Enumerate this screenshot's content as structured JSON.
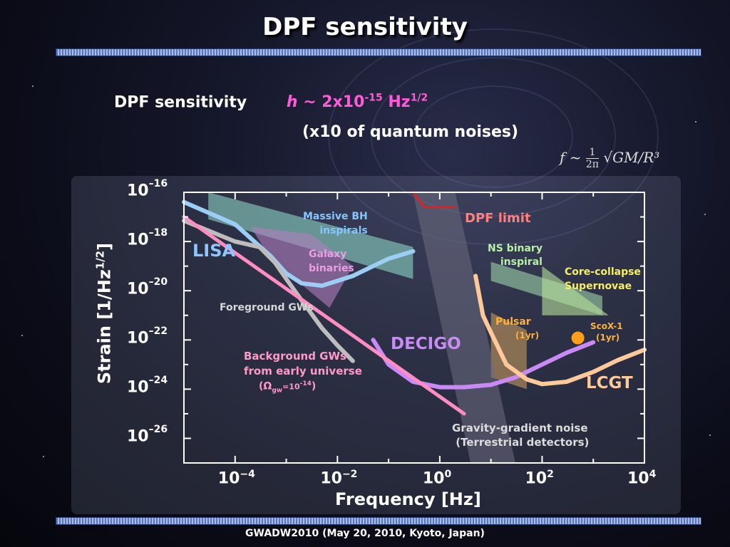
{
  "slide": {
    "title": "DPF sensitivity",
    "line1_label": "DPF sensitivity",
    "line1_h": "h",
    "line1_value": "~ 2x10",
    "line1_exp": "-15",
    "line1_unit": "Hz",
    "line1_unit_exp": "1/2",
    "line2": "(x10 of quantum noises)",
    "formula_lhs": "f ~",
    "formula_num": "1",
    "formula_den": "2π",
    "formula_rhs": "√GM/R³",
    "footer": "GWADW2010 (May 20, 2010, Kyoto, Japan)"
  },
  "chart_data": {
    "type": "line",
    "xlabel": "Frequency   [Hz]",
    "ylabel_main": "Strain   [1/Hz",
    "ylabel_exp": "1/2",
    "ylabel_close": "]",
    "xscale": "log",
    "yscale": "log",
    "xlim": [
      1e-05,
      10000
    ],
    "ylim": [
      1e-27,
      1e-16
    ],
    "x_ticks": [
      {
        "base": "10",
        "exp": "−4",
        "value": 0.0001
      },
      {
        "base": "10",
        "exp": "−2",
        "value": 0.01
      },
      {
        "base": "10",
        "exp": "0",
        "value": 1
      },
      {
        "base": "10",
        "exp": "2",
        "value": 100
      },
      {
        "base": "10",
        "exp": "4",
        "value": 10000
      }
    ],
    "y_ticks": [
      {
        "base": "10",
        "exp": "–16",
        "value": 1e-16
      },
      {
        "base": "10",
        "exp": "–18",
        "value": 1e-18
      },
      {
        "base": "10",
        "exp": "–20",
        "value": 1e-20
      },
      {
        "base": "10",
        "exp": "–22",
        "value": 1e-22
      },
      {
        "base": "10",
        "exp": "–24",
        "value": 1e-24
      },
      {
        "base": "10",
        "exp": "–26",
        "value": 1e-26
      }
    ],
    "series": [
      {
        "name": "LISA",
        "color": "#9ccdf5",
        "x": [
          1e-05,
          0.0001,
          0.0005,
          0.001,
          0.002,
          0.005,
          0.01,
          0.02,
          0.05,
          0.1,
          0.3
        ],
        "y": [
          4e-17,
          5e-18,
          2.5e-19,
          5e-20,
          2e-20,
          1.6e-20,
          2.5e-20,
          4e-20,
          1e-19,
          2e-19,
          4e-19
        ]
      },
      {
        "name": "DECIGO",
        "color": "#c98af5",
        "x": [
          0.05,
          0.1,
          0.3,
          1,
          3,
          10,
          30,
          100,
          300,
          1000
        ],
        "y": [
          1e-22,
          1e-23,
          2e-24,
          1.2e-24,
          1.2e-24,
          1.5e-24,
          3e-24,
          1e-23,
          3e-23,
          8e-23
        ]
      },
      {
        "name": "LCGT",
        "color": "#ffc99a",
        "x": [
          5,
          7,
          10,
          20,
          50,
          100,
          300,
          1000,
          3000,
          10000
        ],
        "y": [
          4e-20,
          1e-21,
          2e-22,
          1e-23,
          2.5e-24,
          1.6e-24,
          2e-24,
          5e-24,
          1.5e-23,
          4e-23
        ]
      },
      {
        "name": "Foreground GWs",
        "color": "#bdbdbd",
        "x": [
          1e-05,
          0.0001,
          0.0003,
          0.0006,
          0.001,
          0.002,
          0.005,
          0.01,
          0.02
        ],
        "y": [
          7e-18,
          1e-18,
          6e-19,
          1.4e-19,
          3e-20,
          4e-21,
          3e-22,
          6e-23,
          1.4e-23
        ]
      },
      {
        "name": "Background GWs from early universe",
        "color": "#ff8dc2",
        "x": [
          1e-05,
          3
        ],
        "y": [
          1e-17,
          1e-25
        ]
      },
      {
        "name": "DPF limit",
        "color": "#e02020",
        "x": [
          0.3,
          0.5,
          2
        ],
        "y": [
          1e-16,
          2.5e-17,
          2.5e-17
        ]
      }
    ],
    "regions": [
      {
        "name": "Massive BH inspirals",
        "color": "#8cd4c4",
        "points": [
          [
            3e-05,
            1e-16
          ],
          [
            0.3,
            6e-19
          ],
          [
            0.3,
            3e-20
          ],
          [
            3e-05,
            8e-18
          ]
        ]
      },
      {
        "name": "Galaxy binaries",
        "color": "#b37fbf",
        "points": [
          [
            0.0002,
            4e-18
          ],
          [
            0.003,
            2e-18
          ],
          [
            0.02,
            1e-19
          ],
          [
            0.007,
            2e-21
          ],
          [
            0.0005,
            2e-19
          ]
        ]
      },
      {
        "name": "NS binary inspiral",
        "color": "#9ed4a8",
        "points": [
          [
            10,
            1.5e-19
          ],
          [
            1500,
            6e-21
          ],
          [
            1500,
            1e-21
          ],
          [
            10,
            2.5e-20
          ]
        ]
      },
      {
        "name": "Core-collapse Supernovae",
        "color": "#b9e29b",
        "points": [
          [
            100,
            1e-19
          ],
          [
            2000,
            1e-21
          ],
          [
            100,
            1e-21
          ]
        ]
      },
      {
        "name": "Pulsar",
        "color": "#c59a5e",
        "points": [
          [
            10,
            1.3e-21
          ],
          [
            50,
            2.5e-22
          ],
          [
            50,
            1e-24
          ],
          [
            10,
            3e-24
          ]
        ]
      },
      {
        "name": "Gravity-gradient noise",
        "color": "#6c6c80",
        "points": [
          [
            0.3,
            1e-16
          ],
          [
            2,
            1e-16
          ],
          [
            30,
            1e-27
          ],
          [
            4,
            1e-27
          ]
        ]
      }
    ],
    "points": [
      {
        "name": "ScoX-1",
        "sublabel": "(1yr)",
        "x": 500,
        "y": 1.2e-22,
        "color": "#ff9f1a"
      }
    ],
    "annotations": {
      "massive_bh": "Massive BH\ninspirals",
      "galaxy": "Galaxy\nbinaries",
      "lisa": "LISA",
      "foreground": "Foreground GWs",
      "background": "Background GWs\nfrom early universe",
      "omega_open": "(Ω",
      "omega_sub": "gw",
      "omega_mid": "=10",
      "omega_exp": "-14",
      "omega_close": ")",
      "decigo": "DECIGO",
      "dpf_limit": "DPF limit",
      "ns_binary": "NS binary\ninspiral",
      "core_collapse": "Core-collapse\nSupernovae",
      "pulsar": "Pulsar",
      "pulsar_sub": "(1yr)",
      "scox": "ScoX-1",
      "scox_sub": "(1yr)",
      "lcgt": "LCGT",
      "gg_noise": "Gravity-gradient noise\n (Terrestrial detectors)"
    }
  }
}
